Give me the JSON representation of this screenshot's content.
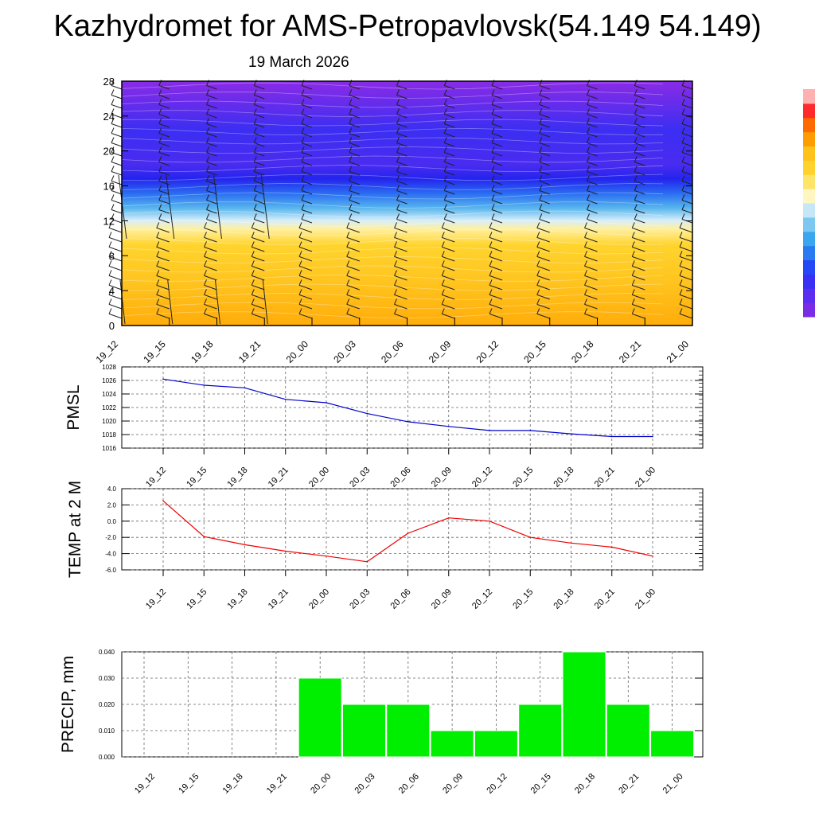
{
  "title": "Kazhydromet for AMS-Petropavlovsk(54.149 54.149)",
  "subtitle": "19 March 2026",
  "time_labels": [
    "19_12",
    "19_15",
    "19_18",
    "19_21",
    "20_00",
    "20_03",
    "20_06",
    "20_09",
    "20_12",
    "20_15",
    "20_18",
    "20_21",
    "21_00"
  ],
  "chart_data": [
    {
      "type": "heatmap",
      "name": "cross-section",
      "xlabel": "",
      "ylabel": "",
      "ylim": [
        0,
        28
      ],
      "y_ticks": [
        0,
        4,
        8,
        12,
        16,
        20,
        24,
        28
      ],
      "categories": [
        "19_12",
        "19_15",
        "19_18",
        "19_21",
        "20_00",
        "20_03",
        "20_06",
        "20_09",
        "20_12",
        "20_15",
        "20_18",
        "20_21",
        "21_00"
      ],
      "colorbar": [
        "#7a2be6",
        "#5b2df0",
        "#3a2ff5",
        "#2448f5",
        "#2a7af2",
        "#3aa6ef",
        "#7cc8f0",
        "#c6e7f7",
        "#fff7c2",
        "#ffe46a",
        "#ffd22e",
        "#ffc21a",
        "#ff9d00",
        "#ff6a00",
        "#ff2b2b",
        "#ffb0b0"
      ],
      "colors": {
        "upper": "#8a2be6",
        "mid": "#2f2ef2",
        "low": "#ffc41f"
      },
      "wind_barbs": true
    },
    {
      "type": "line",
      "name": "PMSL",
      "ylabel": "PMSL",
      "ylim": [
        1016,
        1028
      ],
      "y_ticks": [
        1016,
        1018,
        1020,
        1022,
        1024,
        1026,
        1028
      ],
      "categories": [
        "19_12",
        "19_15",
        "19_18",
        "19_21",
        "20_00",
        "20_03",
        "20_06",
        "20_09",
        "20_12",
        "20_15",
        "20_18",
        "20_21",
        "21_00"
      ],
      "values": [
        1026.2,
        1025.3,
        1024.9,
        1023.2,
        1022.7,
        1021.1,
        1019.9,
        1019.2,
        1018.6,
        1018.6,
        1018.1,
        1017.7,
        1017.7
      ],
      "color": "#0000cc"
    },
    {
      "type": "line",
      "name": "TEMP",
      "ylabel": "TEMP at 2 M",
      "ylim": [
        -6.0,
        4.0
      ],
      "y_ticks": [
        "-6.0",
        "-4.0",
        "-2.0",
        "0.0",
        "2.0",
        "4.0"
      ],
      "categories": [
        "19_12",
        "19_15",
        "19_18",
        "19_21",
        "20_00",
        "20_03",
        "20_06",
        "20_09",
        "20_12",
        "20_15",
        "20_18",
        "20_21",
        "21_00"
      ],
      "values": [
        2.5,
        -1.9,
        -2.9,
        -3.7,
        -4.3,
        -5.0,
        -1.5,
        0.4,
        0.0,
        -2.0,
        -2.7,
        -3.2,
        -4.3
      ],
      "color": "#ee0000"
    },
    {
      "type": "bar",
      "name": "PRECIP",
      "ylabel": "PRECIP, mm",
      "ylim": [
        0,
        0.04
      ],
      "y_ticks": [
        "0.000",
        "0.010",
        "0.020",
        "0.030",
        "0.040"
      ],
      "categories": [
        "19_12",
        "19_15",
        "19_18",
        "19_21",
        "20_00",
        "20_03",
        "20_06",
        "20_09",
        "20_12",
        "20_15",
        "20_18",
        "20_21",
        "21_00"
      ],
      "values": [
        0,
        0,
        0,
        0,
        0.03,
        0.02,
        0.02,
        0.01,
        0.01,
        0.02,
        0.04,
        0.02,
        0.01
      ],
      "color": "#00ee00"
    }
  ]
}
